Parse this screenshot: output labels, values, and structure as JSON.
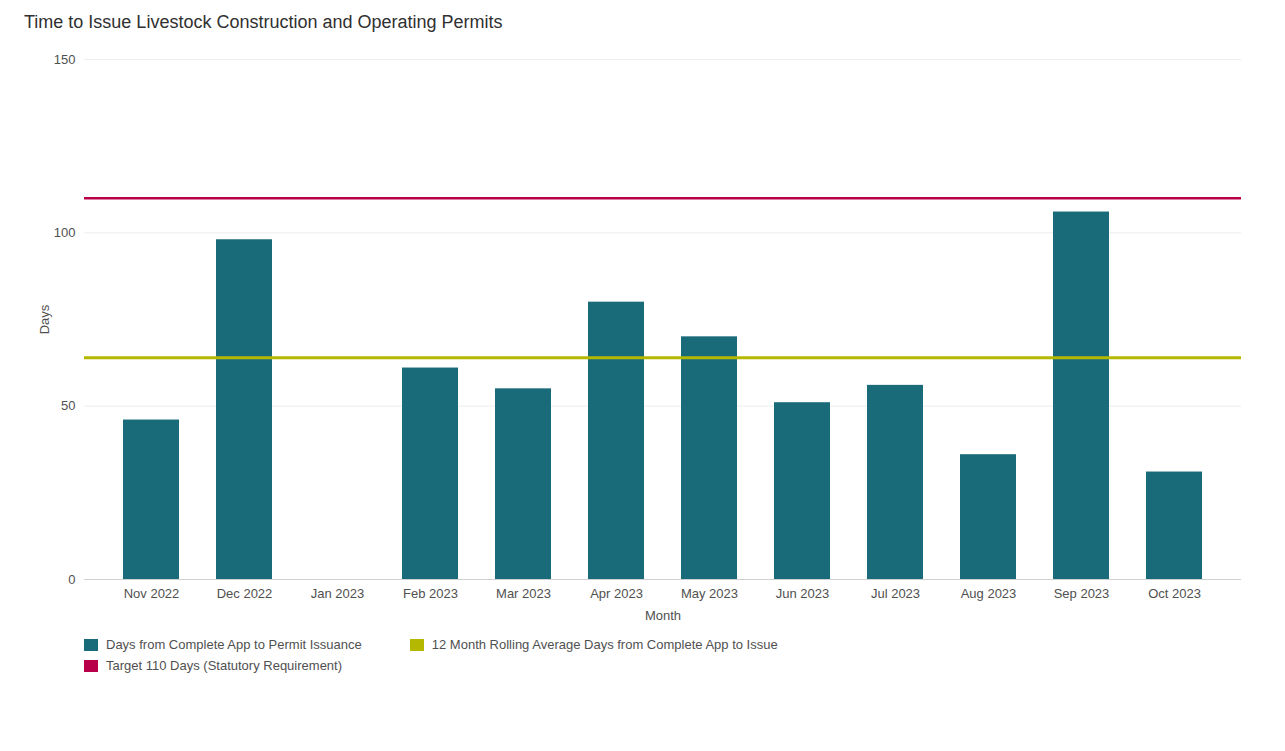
{
  "chart_data": {
    "type": "bar",
    "title": "Time to Issue Livestock Construction and Operating Permits",
    "categories": [
      "Nov 2022",
      "Dec 2022",
      "Jan 2023",
      "Feb 2023",
      "Mar 2023",
      "Apr 2023",
      "May 2023",
      "Jun 2023",
      "Jul 2023",
      "Aug 2023",
      "Sep 2023",
      "Oct 2023"
    ],
    "series": [
      {
        "name": "Days from Complete App to Permit Issuance",
        "color": "#1a6b7a",
        "values": [
          46,
          98,
          0,
          61,
          55,
          80,
          70,
          51,
          56,
          36,
          106,
          31
        ]
      }
    ],
    "reference_lines": [
      {
        "name": "12 Month Rolling Average Days from Complete App to Issue",
        "value": 64,
        "color": "#b5b800"
      },
      {
        "name": "Target 110 Days (Statutory Requirement)",
        "value": 110,
        "color": "#b8004a"
      }
    ],
    "xlabel": "Month",
    "ylabel": "Days",
    "ylim": [
      0,
      150
    ],
    "yticks": [
      0,
      50,
      100,
      150
    ],
    "grid": true,
    "legend": "bottom left"
  }
}
